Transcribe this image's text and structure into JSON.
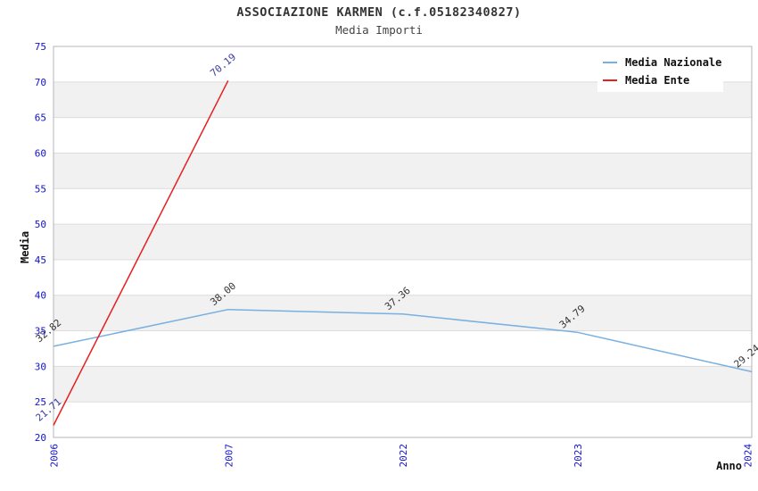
{
  "chart_data": {
    "type": "line",
    "title": "ASSOCIAZIONE KARMEN (c.f.05182340827)",
    "subtitle": "Media Importi",
    "xlabel": "Anno",
    "ylabel": "Media",
    "categories": [
      "2006",
      "2007",
      "2022",
      "2023",
      "2024"
    ],
    "series": [
      {
        "name": "Media Nazionale",
        "color": "#78b0e2",
        "label_color": "#333333",
        "values": [
          32.82,
          38.0,
          37.36,
          34.79,
          29.24
        ]
      },
      {
        "name": "Media Ente",
        "color": "#e62020",
        "label_color": "#3b3b9e",
        "values": [
          21.71,
          70.19,
          null,
          null,
          null
        ]
      }
    ],
    "ylim": [
      20,
      75
    ],
    "ytick_step": 5,
    "grid": true,
    "banded_background": true,
    "legend_position": "top-right",
    "styles": {
      "tick_label_color": "#1212cc",
      "band_color": "#f1f1f1",
      "grid_color": "#dcdcdc",
      "border_color": "#b5b5b5",
      "title_color": "#333333",
      "axis_title_color": "#111111",
      "legend_text_color": "#101010",
      "background_color": "#ffffff"
    }
  }
}
